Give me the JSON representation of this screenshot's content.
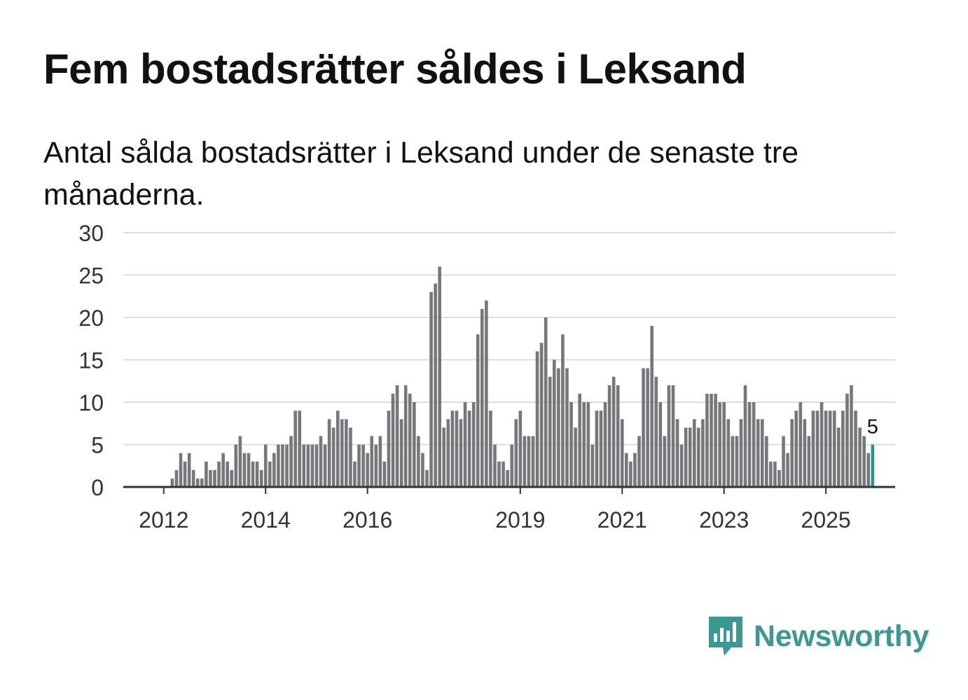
{
  "title": "Fem bostadsrätter såldes i Leksand",
  "subtitle": "Antal sålda bostadsrätter i Leksand under de senaste tre månaderna.",
  "logo": {
    "text": "Newsworthy",
    "icon": "bar-chart-speech-bubble-icon"
  },
  "colors": {
    "bar": "#77767b",
    "highlight": "#1a9a95",
    "grid": "#dddddd",
    "axis": "#333333"
  },
  "chart_data": {
    "type": "bar",
    "title": "Fem bostadsrätter såldes i Leksand",
    "xlabel": "",
    "ylabel": "",
    "ylim": [
      0,
      30
    ],
    "yticks": [
      0,
      5,
      10,
      15,
      20,
      25,
      30
    ],
    "xtick_labels": [
      "2012",
      "2014",
      "2016",
      "2019",
      "2021",
      "2023",
      "2025"
    ],
    "xtick_bar_index": [
      8,
      32,
      56,
      92,
      116,
      140,
      164
    ],
    "start": "2011-06",
    "frequency": "monthly",
    "highlight_last": true,
    "last_label": "5",
    "values": [
      0,
      0,
      0,
      0,
      0,
      0,
      0,
      0,
      0,
      0,
      1,
      2,
      4,
      3,
      4,
      2,
      1,
      1,
      3,
      2,
      2,
      3,
      4,
      3,
      2,
      5,
      6,
      4,
      4,
      3,
      3,
      2,
      5,
      3,
      4,
      5,
      5,
      5,
      6,
      9,
      9,
      5,
      5,
      5,
      5,
      6,
      5,
      8,
      7,
      9,
      8,
      8,
      7,
      3,
      5,
      5,
      4,
      6,
      5,
      6,
      3,
      9,
      11,
      12,
      8,
      12,
      11,
      10,
      6,
      4,
      2,
      23,
      24,
      26,
      7,
      8,
      9,
      9,
      8,
      10,
      9,
      10,
      18,
      21,
      22,
      9,
      5,
      3,
      3,
      2,
      5,
      8,
      9,
      6,
      6,
      6,
      16,
      17,
      20,
      13,
      15,
      14,
      18,
      14,
      10,
      7,
      11,
      10,
      10,
      5,
      9,
      9,
      10,
      12,
      13,
      12,
      8,
      4,
      3,
      4,
      6,
      14,
      14,
      19,
      13,
      10,
      6,
      12,
      12,
      8,
      5,
      7,
      7,
      8,
      7,
      8,
      11,
      11,
      11,
      10,
      10,
      8,
      6,
      6,
      8,
      12,
      10,
      10,
      8,
      8,
      6,
      3,
      3,
      2,
      6,
      4,
      8,
      9,
      10,
      8,
      6,
      9,
      9,
      10,
      9,
      9,
      9,
      7,
      9,
      11,
      12,
      9,
      7,
      6,
      4,
      5
    ]
  }
}
